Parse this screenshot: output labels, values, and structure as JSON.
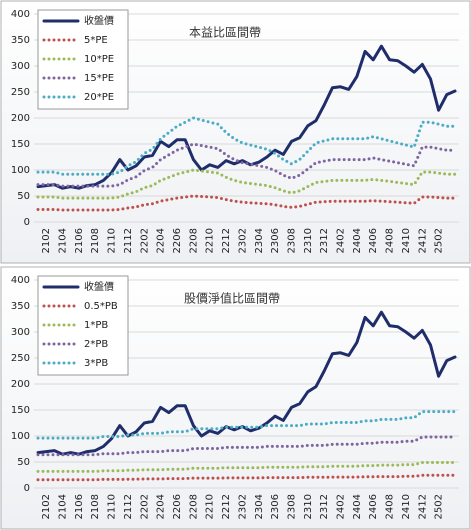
{
  "chart_data": [
    {
      "type": "line",
      "title": "本益比區間帶",
      "ylim": [
        0,
        400
      ],
      "yticks": [
        0,
        50,
        100,
        150,
        200,
        250,
        300,
        350,
        400
      ],
      "grid": true,
      "categories": [
        null,
        "2102",
        null,
        "2104",
        null,
        "2106",
        null,
        "2108",
        null,
        "2110",
        null,
        "2112",
        null,
        "2202",
        null,
        "2204",
        null,
        "2206",
        null,
        "2208",
        null,
        "2210",
        null,
        "2212",
        null,
        "2302",
        null,
        "2304",
        null,
        "2306",
        null,
        "2308",
        null,
        "2310",
        null,
        "2312",
        null,
        "2402",
        null,
        "2404",
        null,
        "2406",
        null,
        "2408",
        null,
        "2410",
        null,
        "2412",
        null,
        "2502",
        null,
        null
      ],
      "series": [
        {
          "name": "收盤價",
          "color": "#1f2d6b",
          "style": "solid",
          "values": [
            68,
            70,
            72,
            65,
            68,
            65,
            70,
            72,
            80,
            95,
            120,
            100,
            108,
            125,
            128,
            155,
            145,
            158,
            158,
            120,
            100,
            110,
            105,
            118,
            112,
            118,
            110,
            115,
            125,
            138,
            130,
            155,
            162,
            185,
            195,
            225,
            258,
            260,
            255,
            280,
            328,
            312,
            338,
            312,
            310,
            300,
            288,
            303,
            275,
            215,
            245,
            252
          ]
        },
        {
          "name": "5*PE",
          "color": "#c0504d",
          "style": "dotted",
          "values": [
            24,
            24,
            24,
            23,
            23,
            23,
            23,
            23,
            23,
            23,
            24,
            27,
            29,
            33,
            35,
            40,
            43,
            46,
            48,
            50,
            49,
            48,
            47,
            43,
            40,
            38,
            37,
            36,
            35,
            33,
            30,
            28,
            30,
            34,
            38,
            39,
            40,
            40,
            40,
            40,
            40,
            41,
            40,
            39,
            38,
            37,
            36,
            48,
            48,
            47,
            46,
            46
          ]
        },
        {
          "name": "10*PE",
          "color": "#9bbb59",
          "style": "dotted",
          "values": [
            48,
            48,
            48,
            46,
            46,
            46,
            46,
            46,
            46,
            46,
            48,
            54,
            58,
            66,
            70,
            80,
            86,
            92,
            96,
            100,
            98,
            96,
            94,
            86,
            80,
            76,
            74,
            72,
            70,
            66,
            60,
            56,
            60,
            68,
            76,
            78,
            80,
            80,
            80,
            80,
            80,
            82,
            80,
            78,
            76,
            74,
            72,
            96,
            96,
            94,
            92,
            92
          ]
        },
        {
          "name": "15*PE",
          "color": "#8064a2",
          "style": "dotted",
          "values": [
            72,
            72,
            72,
            69,
            69,
            69,
            69,
            69,
            69,
            69,
            72,
            81,
            87,
            99,
            105,
            120,
            129,
            138,
            144,
            150,
            147,
            144,
            141,
            129,
            120,
            114,
            111,
            108,
            105,
            99,
            90,
            84,
            90,
            102,
            114,
            117,
            120,
            120,
            120,
            120,
            120,
            123,
            120,
            117,
            114,
            111,
            108,
            144,
            144,
            141,
            138,
            138
          ]
        },
        {
          "name": "20*PE",
          "color": "#4bacc6",
          "style": "dotted",
          "values": [
            96,
            96,
            96,
            92,
            92,
            92,
            92,
            92,
            92,
            92,
            96,
            108,
            116,
            132,
            140,
            160,
            172,
            184,
            192,
            200,
            196,
            192,
            188,
            172,
            160,
            152,
            148,
            144,
            140,
            132,
            120,
            112,
            120,
            136,
            152,
            156,
            160,
            160,
            160,
            160,
            160,
            164,
            160,
            156,
            152,
            148,
            144,
            192,
            192,
            188,
            184,
            184
          ]
        }
      ]
    },
    {
      "type": "line",
      "title": "股價淨值比區間帶",
      "ylim": [
        0,
        400
      ],
      "yticks": [
        0,
        50,
        100,
        150,
        200,
        250,
        300,
        350,
        400
      ],
      "grid": true,
      "categories": [
        null,
        "2102",
        null,
        "2104",
        null,
        "2106",
        null,
        "2108",
        null,
        "2110",
        null,
        "2112",
        null,
        "2202",
        null,
        "2204",
        null,
        "2206",
        null,
        "2208",
        null,
        "2210",
        null,
        "2212",
        null,
        "2302",
        null,
        "2304",
        null,
        "2306",
        null,
        "2308",
        null,
        "2310",
        null,
        "2312",
        null,
        "2402",
        null,
        "2404",
        null,
        "2406",
        null,
        "2408",
        null,
        "2410",
        null,
        "2412",
        null,
        "2502",
        null,
        null
      ],
      "series": [
        {
          "name": "收盤價",
          "color": "#1f2d6b",
          "style": "solid",
          "values": [
            68,
            70,
            72,
            65,
            68,
            65,
            70,
            72,
            80,
            95,
            120,
            100,
            108,
            125,
            128,
            155,
            145,
            158,
            158,
            120,
            100,
            110,
            105,
            118,
            112,
            118,
            110,
            115,
            125,
            138,
            130,
            155,
            162,
            185,
            195,
            225,
            258,
            260,
            255,
            280,
            328,
            312,
            338,
            312,
            310,
            300,
            288,
            303,
            275,
            215,
            245,
            252
          ]
        },
        {
          "name": "0.5*PB",
          "color": "#c0504d",
          "style": "dotted",
          "values": [
            16,
            16,
            16,
            16,
            16,
            16,
            16,
            16,
            16.5,
            16.5,
            16.5,
            17,
            17,
            17.5,
            17.5,
            17.5,
            18,
            18,
            18,
            19,
            19,
            19,
            19,
            19.5,
            19.5,
            19.5,
            19.5,
            19.5,
            20,
            20,
            20,
            20,
            20,
            20.5,
            20.5,
            20.5,
            21,
            21,
            21,
            21,
            21.5,
            21.5,
            22,
            22,
            22,
            22.5,
            22.5,
            24.5,
            24.5,
            24.5,
            24.5,
            24.5
          ]
        },
        {
          "name": "1*PB",
          "color": "#9bbb59",
          "style": "dotted",
          "values": [
            32,
            32,
            32,
            32,
            32,
            32,
            32,
            32,
            33,
            33,
            33,
            34,
            34,
            35,
            35,
            35,
            36,
            36,
            36,
            38,
            38,
            38,
            38,
            39,
            39,
            39,
            39,
            39,
            40,
            40,
            40,
            40,
            40,
            41,
            41,
            41,
            42,
            42,
            42,
            42,
            43,
            43,
            44,
            44,
            44,
            45,
            45,
            49,
            49,
            49,
            49,
            49
          ]
        },
        {
          "name": "2*PB",
          "color": "#8064a2",
          "style": "dotted",
          "values": [
            64,
            64,
            64,
            64,
            64,
            64,
            64,
            64,
            66,
            66,
            66,
            68,
            68,
            70,
            70,
            70,
            72,
            72,
            72,
            76,
            76,
            76,
            76,
            78,
            78,
            78,
            78,
            78,
            80,
            80,
            80,
            80,
            80,
            82,
            82,
            82,
            84,
            84,
            84,
            84,
            86,
            86,
            88,
            88,
            88,
            90,
            90,
            98,
            98,
            98,
            98,
            98
          ]
        },
        {
          "name": "3*PB",
          "color": "#4bacc6",
          "style": "dotted",
          "values": [
            96,
            96,
            96,
            96,
            96,
            96,
            96,
            96,
            99,
            99,
            99,
            102,
            102,
            105,
            105,
            105,
            108,
            108,
            108,
            114,
            114,
            114,
            114,
            117,
            117,
            117,
            117,
            117,
            120,
            120,
            120,
            120,
            120,
            123,
            123,
            123,
            126,
            126,
            126,
            126,
            129,
            129,
            132,
            132,
            132,
            135,
            135,
            147,
            147,
            147,
            147,
            147
          ]
        }
      ]
    }
  ]
}
